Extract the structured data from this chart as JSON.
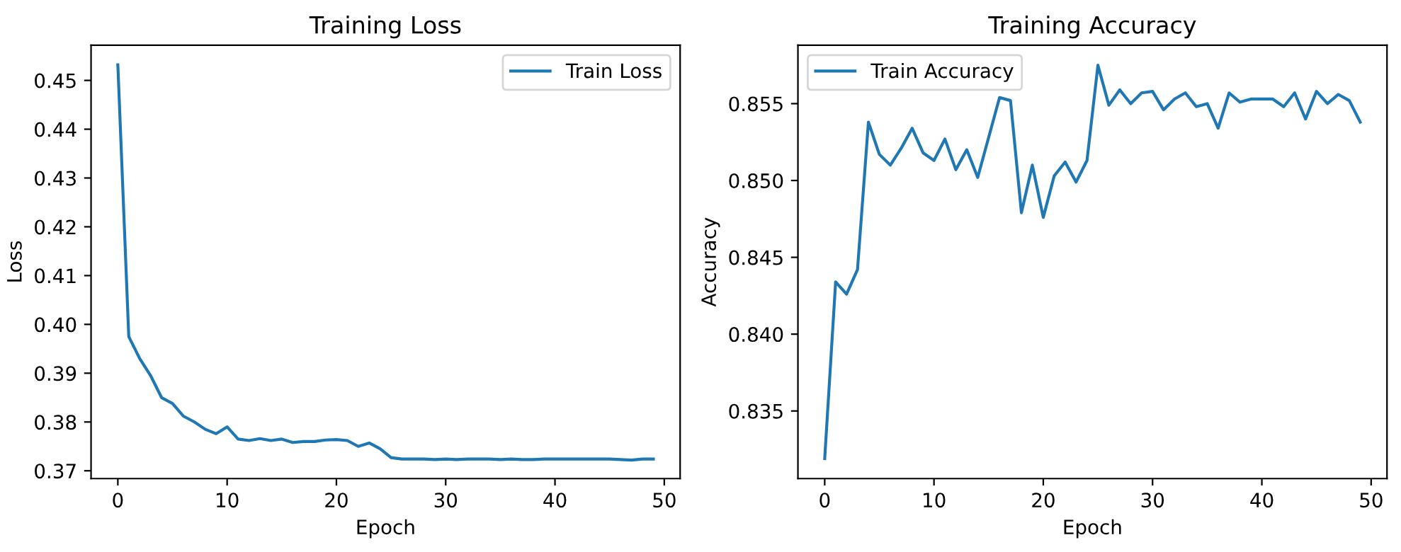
{
  "chart_data": [
    {
      "type": "line",
      "title": "Training Loss",
      "xlabel": "Epoch",
      "ylabel": "Loss",
      "x": [
        0,
        1,
        2,
        3,
        4,
        5,
        6,
        7,
        8,
        9,
        10,
        11,
        12,
        13,
        14,
        15,
        16,
        17,
        18,
        19,
        20,
        21,
        22,
        23,
        24,
        25,
        26,
        27,
        28,
        29,
        30,
        31,
        32,
        33,
        34,
        35,
        36,
        37,
        38,
        39,
        40,
        41,
        42,
        43,
        44,
        45,
        46,
        47,
        48,
        49
      ],
      "series": [
        {
          "name": "Train Loss",
          "color": "#1f77b4",
          "values": [
            0.4532,
            0.3975,
            0.393,
            0.3895,
            0.385,
            0.3838,
            0.3812,
            0.38,
            0.3785,
            0.3776,
            0.379,
            0.3765,
            0.3762,
            0.3766,
            0.3762,
            0.3765,
            0.3758,
            0.376,
            0.376,
            0.3763,
            0.3764,
            0.3762,
            0.375,
            0.3757,
            0.3745,
            0.3727,
            0.3724,
            0.3724,
            0.3724,
            0.3723,
            0.3724,
            0.3723,
            0.3724,
            0.3724,
            0.3724,
            0.3723,
            0.3724,
            0.3723,
            0.3723,
            0.3724,
            0.3724,
            0.3724,
            0.3724,
            0.3724,
            0.3724,
            0.3724,
            0.3723,
            0.3722,
            0.3724,
            0.3724
          ]
        }
      ],
      "xlim": [
        -2.45,
        51.45
      ],
      "xticks": [
        0,
        10,
        20,
        30,
        40,
        50
      ],
      "ylim": [
        0.3684,
        0.4572
      ],
      "yticks": [
        0.37,
        0.38,
        0.39,
        {
          "value": 0.4,
          "label": "0.40"
        },
        0.41,
        0.42,
        0.43,
        0.44,
        0.45
      ],
      "legend": "top right",
      "grid": false,
      "marker": "none",
      "line_style": "solid"
    },
    {
      "type": "line",
      "title": "Training Accuracy",
      "xlabel": "Epoch",
      "ylabel": "Accuracy",
      "x": [
        0,
        1,
        2,
        3,
        4,
        5,
        6,
        7,
        8,
        9,
        10,
        11,
        12,
        13,
        14,
        15,
        16,
        17,
        18,
        19,
        20,
        21,
        22,
        23,
        24,
        25,
        26,
        27,
        28,
        29,
        30,
        31,
        32,
        33,
        34,
        35,
        36,
        37,
        38,
        39,
        40,
        41,
        42,
        43,
        44,
        45,
        46,
        47,
        48,
        49
      ],
      "series": [
        {
          "name": "Train Accuracy",
          "color": "#1f77b4",
          "values": [
            0.8319,
            0.8434,
            0.8426,
            0.8442,
            0.8538,
            0.8517,
            0.851,
            0.8521,
            0.8534,
            0.8518,
            0.8513,
            0.8527,
            0.8507,
            0.852,
            0.8502,
            0.8528,
            0.8554,
            0.8552,
            0.8479,
            0.851,
            0.8476,
            0.8503,
            0.8512,
            0.8499,
            0.8513,
            0.8575,
            0.8549,
            0.8559,
            0.855,
            0.8557,
            0.8558,
            0.8546,
            0.8553,
            0.8557,
            0.8548,
            0.855,
            0.8534,
            0.8557,
            0.8551,
            0.8553,
            0.8553,
            0.8553,
            0.8548,
            0.8557,
            0.854,
            0.8558,
            0.855,
            0.8556,
            0.8552,
            0.8538
          ]
        }
      ],
      "xlim": [
        -2.45,
        51.45
      ],
      "xticks": [
        0,
        10,
        20,
        30,
        40,
        50
      ],
      "ylim": [
        0.8306,
        0.8588
      ],
      "yticks": [
        0.835,
        {
          "value": 0.84,
          "label": "0.840"
        },
        0.845,
        {
          "value": 0.85,
          "label": "0.850"
        },
        0.855
      ],
      "legend": "top left",
      "grid": false,
      "marker": "none",
      "line_style": "solid"
    }
  ]
}
